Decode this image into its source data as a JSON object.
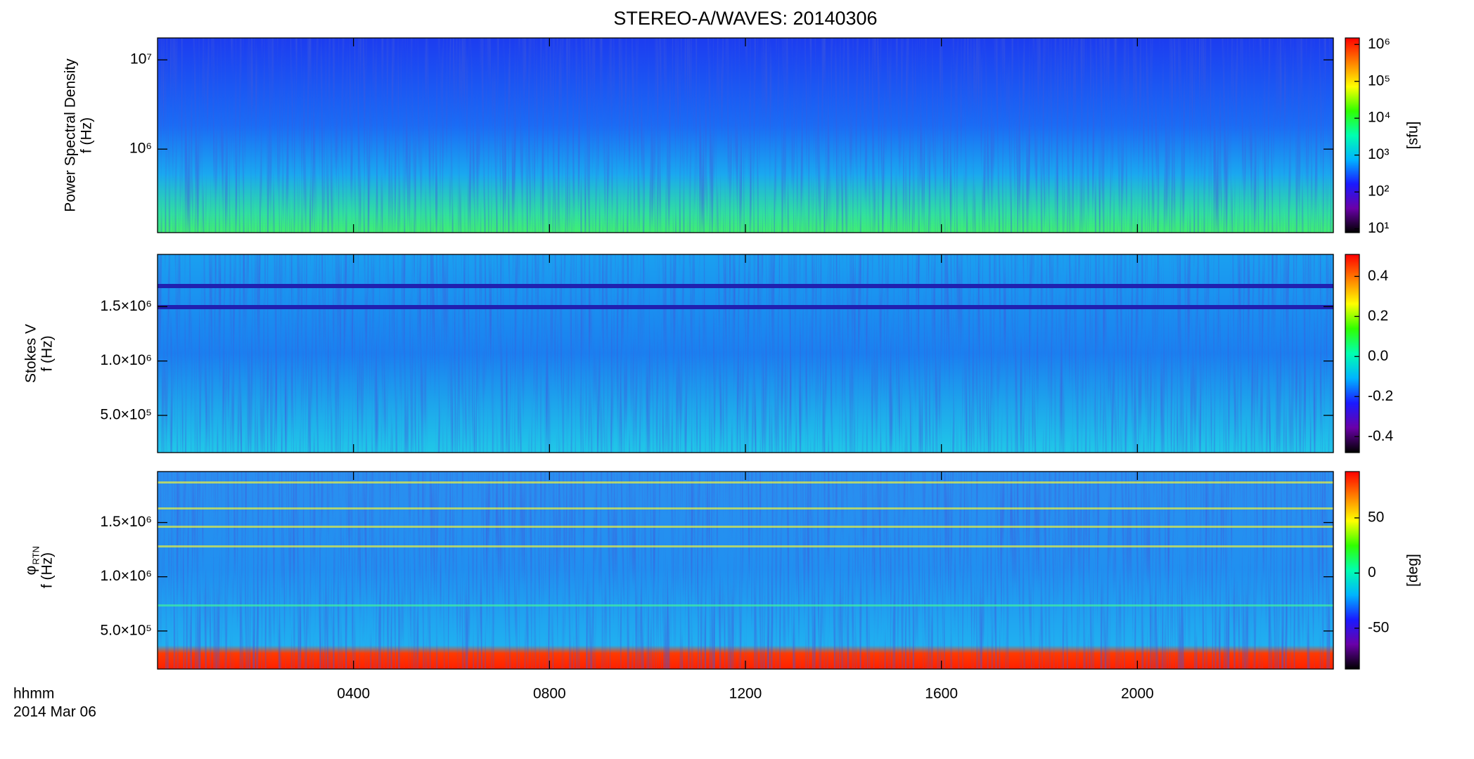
{
  "chart_data": [
    {
      "type": "spectrogram",
      "title": "STEREO-A/WAVES: 20140306",
      "ylabel": [
        "Power Spectral Density",
        "f (Hz)"
      ],
      "ylog": true,
      "ylim": [
        116000,
        17600000
      ],
      "yticks": [
        {
          "value": 1000000,
          "label": "10⁶"
        },
        {
          "value": 10000000,
          "label": "10⁷"
        }
      ],
      "clog": true,
      "clim": [
        7.9,
        1500000
      ],
      "cticks": [
        {
          "value": 10,
          "label": "10¹"
        },
        {
          "value": 100,
          "label": "10²"
        },
        {
          "value": 1000,
          "label": "10³"
        },
        {
          "value": 10000,
          "label": "10⁴"
        },
        {
          "value": 100000,
          "label": "10⁵"
        },
        {
          "value": 1000000,
          "label": "10⁶"
        }
      ],
      "clabel": "[sfu]",
      "colormap": [
        "#000000",
        "#6a00a8",
        "#1a1aff",
        "#00b4ff",
        "#00ffb0",
        "#30ff00",
        "#ffff00",
        "#ff8000",
        "#ff0000"
      ]
    },
    {
      "type": "spectrogram",
      "ylabel": [
        "Stokes V",
        "f (Hz)"
      ],
      "ylog": false,
      "ylim": [
        158000,
        1980000
      ],
      "yticks": [
        {
          "value": 500000,
          "label": "5.0×10⁵"
        },
        {
          "value": 1000000,
          "label": "1.0×10⁶"
        },
        {
          "value": 1500000,
          "label": "1.5×10⁶"
        }
      ],
      "clog": false,
      "clim": [
        -0.48,
        0.51
      ],
      "cticks": [
        -0.4,
        -0.2,
        {
          "value": 0,
          "label": "0.0"
        },
        0.2,
        0.4
      ],
      "colormap": [
        "#000000",
        "#6a00a8",
        "#1a1aff",
        "#00b4ff",
        "#00ffb0",
        "#30ff00",
        "#ffff00",
        "#ff8000",
        "#ff0000"
      ]
    },
    {
      "type": "spectrogram",
      "ylabel": [
        "φ",
        "f (Hz)"
      ],
      "ylabel_sub": "RTN",
      "ylog": false,
      "ylim": [
        149000,
        1970000
      ],
      "yticks": [
        {
          "value": 500000,
          "label": "5.0×10⁵"
        },
        {
          "value": 1000000,
          "label": "1.0×10⁶"
        },
        {
          "value": 1500000,
          "label": "1.5×10⁶"
        }
      ],
      "clog": false,
      "clim": [
        -87,
        92
      ],
      "cticks": [
        -50,
        0,
        50
      ],
      "clabel": "[deg]",
      "colormap": [
        "#000000",
        "#6a00a8",
        "#1a1aff",
        "#00b4ff",
        "#00ffb0",
        "#30ff00",
        "#ffff00",
        "#ff8000",
        "#ff0000"
      ],
      "xlim": [
        0,
        24
      ],
      "xticks": [
        {
          "value": 4,
          "label": "0400"
        },
        {
          "value": 8,
          "label": "0800"
        },
        {
          "value": 12,
          "label": "1200"
        },
        {
          "value": 16,
          "label": "1600"
        },
        {
          "value": 20,
          "label": "2000"
        }
      ],
      "xlabel": [
        "hhmm",
        "2014 Mar 06"
      ]
    }
  ]
}
